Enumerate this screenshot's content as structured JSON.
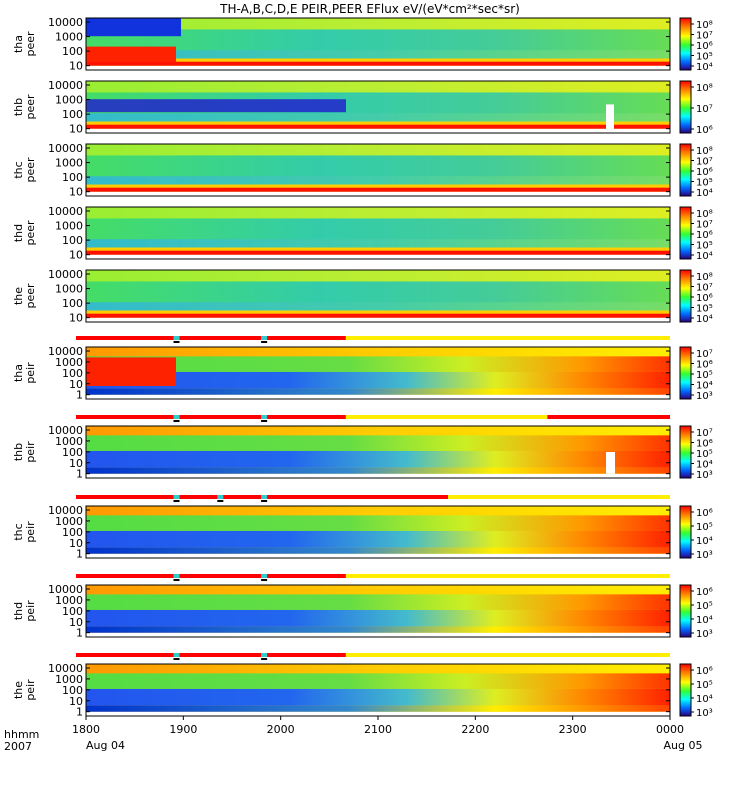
{
  "title": "TH-A,B,C,D,E PEIR,PEER EFlux eV/(eV*cm²*sec*sr)",
  "panels": [
    {
      "label1": "tha",
      "label2": "peer",
      "ticks": [
        "10000",
        "1000",
        "100",
        "10"
      ],
      "cb_ticks": [
        "10⁸",
        "10⁷",
        "10⁶",
        "10⁵",
        "10⁴"
      ],
      "kind": "peer",
      "bar": null
    },
    {
      "label1": "thb",
      "label2": "peer",
      "ticks": [
        "10000",
        "1000",
        "100",
        "10"
      ],
      "cb_ticks": [
        "10⁸",
        "10⁷",
        "10⁶"
      ],
      "kind": "peer",
      "bar": null
    },
    {
      "label1": "thc",
      "label2": "peer",
      "ticks": [
        "10000",
        "1000",
        "100",
        "10"
      ],
      "cb_ticks": [
        "10⁸",
        "10⁷",
        "10⁶",
        "10⁵",
        "10⁴"
      ],
      "kind": "peer",
      "bar": null
    },
    {
      "label1": "thd",
      "label2": "peer",
      "ticks": [
        "10000",
        "1000",
        "100",
        "10"
      ],
      "cb_ticks": [
        "10⁸",
        "10⁷",
        "10⁶",
        "10⁵",
        "10⁴"
      ],
      "kind": "peer",
      "bar": null
    },
    {
      "label1": "the",
      "label2": "peer",
      "ticks": [
        "10000",
        "1000",
        "100",
        "10"
      ],
      "cb_ticks": [
        "10⁸",
        "10⁷",
        "10⁶",
        "10⁵",
        "10⁴"
      ],
      "kind": "peer",
      "bar": null
    },
    {
      "label1": "tha",
      "label2": "peir",
      "ticks": [
        "10000",
        "1000",
        "100",
        "10",
        "1"
      ],
      "cb_ticks": [
        "10⁷",
        "10⁶",
        "10⁵",
        "10⁴",
        "10³"
      ],
      "kind": "peir",
      "bar": {
        "red_end": 0.445,
        "marks": [
          0.155,
          0.305
        ]
      }
    },
    {
      "label1": "thb",
      "label2": "peir",
      "ticks": [
        "10000",
        "1000",
        "100",
        "10",
        "1"
      ],
      "cb_ticks": [
        "10⁷",
        "10⁶",
        "10⁵",
        "10⁴",
        "10³"
      ],
      "kind": "peir",
      "bar": {
        "red_end": 0.445,
        "yellow_end": 0.79,
        "marks": [
          0.155,
          0.305
        ]
      }
    },
    {
      "label1": "thc",
      "label2": "peir",
      "ticks": [
        "10000",
        "1000",
        "100",
        "10",
        "1"
      ],
      "cb_ticks": [
        "10⁶",
        "10⁵",
        "10⁴",
        "10³"
      ],
      "kind": "peir",
      "bar": {
        "red_end": 0.62,
        "marks": [
          0.155,
          0.23,
          0.305
        ]
      }
    },
    {
      "label1": "thd",
      "label2": "peir",
      "ticks": [
        "10000",
        "1000",
        "100",
        "10",
        "1"
      ],
      "cb_ticks": [
        "10⁶",
        "10⁵",
        "10⁴",
        "10³"
      ],
      "kind": "peir",
      "bar": {
        "red_end": 0.445,
        "marks": [
          0.155,
          0.305
        ]
      }
    },
    {
      "label1": "the",
      "label2": "peir",
      "ticks": [
        "10000",
        "1000",
        "100",
        "10",
        "1"
      ],
      "cb_ticks": [
        "10⁶",
        "10⁵",
        "10⁴",
        "10³"
      ],
      "kind": "peir",
      "bar": {
        "red_end": 0.445,
        "marks": [
          0.155,
          0.305
        ]
      }
    }
  ],
  "xaxis": {
    "ticks": [
      "1800",
      "1900",
      "2000",
      "2100",
      "2200",
      "2300",
      "0000"
    ],
    "left_label_top": "hhmm",
    "left_label_bottom": "2007",
    "start_date": "Aug 04",
    "end_date": "Aug 05"
  },
  "chart_data": {
    "type": "heatmap",
    "title": "TH-A,B,C,D,E PEIR,PEER EFlux eV/(eV*cm²*sec*sr)",
    "x_ticks": [
      "1800",
      "1900",
      "2000",
      "2100",
      "2200",
      "2300",
      "0000"
    ],
    "y_scale": "log",
    "series": [
      "tha peer",
      "thb peer",
      "thc peer",
      "thd peer",
      "the peer",
      "tha peir",
      "thb peir",
      "thc peir",
      "thd peir",
      "the peir"
    ]
  },
  "colors": {
    "red": "#ff0000",
    "yellow": "#ffee00",
    "cyan": "#33cccc"
  }
}
